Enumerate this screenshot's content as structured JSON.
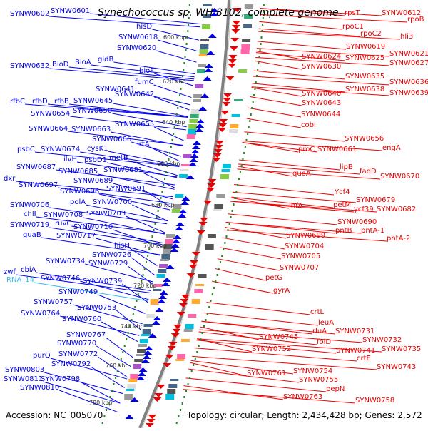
{
  "title": "Synechococcus sp. WH 8102, complete genome",
  "footer": {
    "accession": "Accession: NC_005070",
    "summary": "Topology: circular; Length: 2,434,428 bp; Genes: 2,572"
  },
  "colors": {
    "forward": "#0000ee",
    "reverse": "#ee0000",
    "rna": "#33bbee",
    "backbone": "#808080",
    "tick": "#228822",
    "tick_label": "#333333"
  },
  "tick_labels": [
    "600 kbp",
    "620 kbp",
    "640 kbp",
    "660 kbp",
    "680 kbp",
    "700 kbp",
    "720 kbp",
    "740 kbp",
    "760 kbp",
    "780 kbp"
  ],
  "left_labels": [
    "SYNW0602",
    "SYNW0601",
    "hisD",
    "SYNW0618",
    "SYNW0620",
    "SYNW0632",
    "BioD",
    "BioA",
    "gidB",
    "bioF",
    "fumC",
    "SYNW0641",
    "SYNW0642",
    "rfbC",
    "rfbD",
    "rfbB",
    "SYNW0645",
    "SYNW0654",
    "SYNW0650",
    "SYNW0655",
    "SYNW0664",
    "SYNW0663",
    "SYNW0666",
    "lrtA",
    "psbC",
    "SYNW0674",
    "cysK1",
    "ilvH",
    "psbD1",
    "metB",
    "SYNW0687",
    "SYNW0685",
    "SYNW0681",
    "SYNW0689",
    "dxr",
    "SYNW0697",
    "SYNW0696",
    "SYNW0691",
    "SYNW0706",
    "polA",
    "SYNW0700",
    "chlI",
    "SYNW0708",
    "SYNW0703",
    "SYNW0719",
    "ruvC",
    "SYNW0710",
    "guaB",
    "SYNW0717",
    "hisH",
    "SYNW0726",
    "SYNW0734",
    "SYNW0729",
    "zwf",
    "cbiA",
    "RNA_14",
    "SYNW0746",
    "SYNW0739",
    "SYNW0749",
    "SYNW0757",
    "SYNW0753",
    "SYNW0764",
    "SYNW0760",
    "SYNW0767",
    "SYNW0770",
    "purQ",
    "SYNW0772",
    "SYNW0792",
    "SYNW0803",
    "SYNW0811",
    "SYNW0798",
    "SYNW0810"
  ],
  "right_labels": [
    "rpsT",
    "SYNW0612",
    "rpoB",
    "rpoC1",
    "rpoC2",
    "hli3",
    "SYNW0619",
    "SYNW0624",
    "SYNW0625",
    "SYNW0621",
    "SYNW0627",
    "SYNW0630",
    "SYNW0635",
    "SYNW0636",
    "SYNW0638",
    "SYNW0639",
    "SYNW0640",
    "SYNW0643",
    "SYNW0644",
    "cobI",
    "SYNW0656",
    "proC",
    "SYNW0661",
    "engA",
    "lipB",
    "fadD",
    "SYNW0670",
    "queA",
    "Ycf4",
    "SYNW0679",
    "petM",
    "infA",
    "ycf39",
    "SYNW0682",
    "SYNW0690",
    "pntB",
    "pntA-1",
    "pntA-2",
    "SYNW0699",
    "SYNW0704",
    "SYNW0705",
    "SYNW0707",
    "petG",
    "gyrA",
    "crtL",
    "leuA",
    "SYNW0731",
    "rluA",
    "SYNW0732",
    "SYNW0745",
    "folD",
    "SYNW0741",
    "SYNW0735",
    "SYNW0752",
    "crtE",
    "SYNW0743",
    "SYNW0754",
    "SYNW0755",
    "SYNW0761",
    "pepN",
    "SYNW0763",
    "SYNW0758"
  ]
}
